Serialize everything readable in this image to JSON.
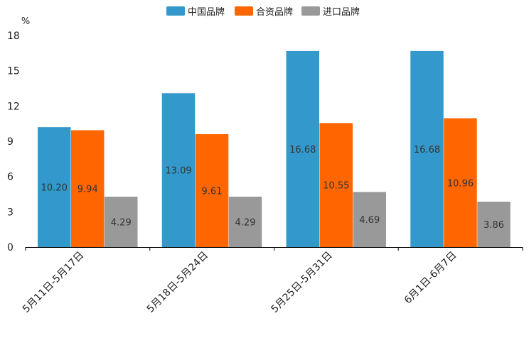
{
  "chart_data": {
    "type": "bar",
    "unit_label": "%",
    "categories": [
      "5月11日-5月17日",
      "5月18日-5月24日",
      "5月25日-5月31日",
      "6月1日-6月7日"
    ],
    "series": [
      {
        "name": "中国品牌",
        "color": "#3399cc",
        "values": [
          10.2,
          13.09,
          16.68,
          16.68
        ],
        "labels": [
          "10.20",
          "13.09",
          "16.68",
          "16.68"
        ]
      },
      {
        "name": "合资品牌",
        "color": "#ff6600",
        "values": [
          9.94,
          9.61,
          10.55,
          10.96
        ],
        "labels": [
          "9.94",
          "9.61",
          "10.55",
          "10.96"
        ]
      },
      {
        "name": "进口品牌",
        "color": "#999999",
        "values": [
          4.29,
          4.29,
          4.69,
          3.86
        ],
        "labels": [
          "4.29",
          "4.29",
          "4.69",
          "3.86"
        ]
      }
    ],
    "ylim": [
      0,
      18
    ],
    "yticks": [
      0,
      3,
      6,
      9,
      12,
      15,
      18
    ],
    "legend_position": "top-center",
    "grid": false
  }
}
